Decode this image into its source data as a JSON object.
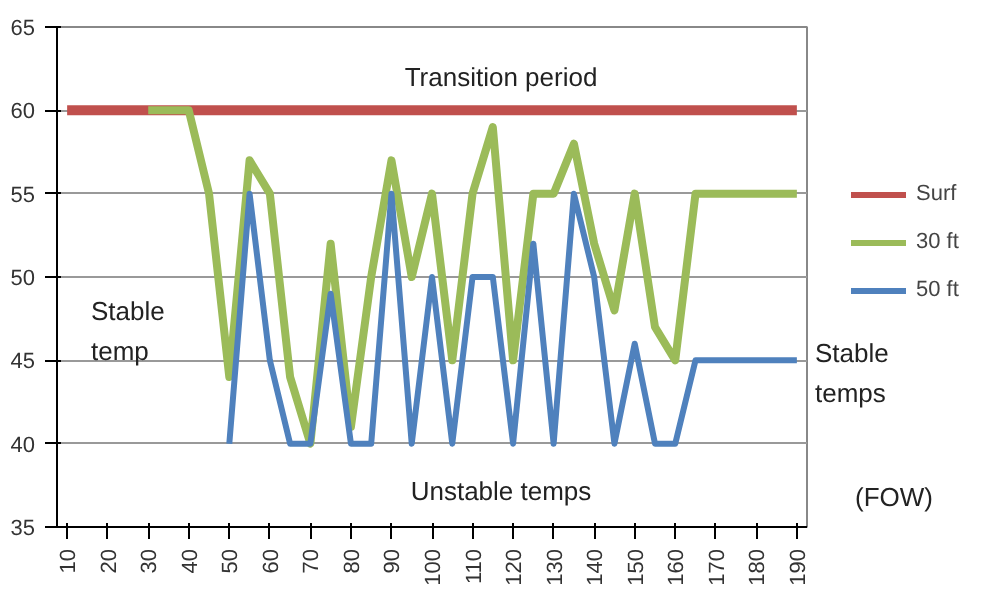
{
  "chart_data": {
    "type": "line",
    "x": [
      10,
      15,
      20,
      25,
      30,
      35,
      40,
      45,
      50,
      55,
      60,
      65,
      70,
      75,
      80,
      85,
      90,
      95,
      100,
      105,
      110,
      115,
      120,
      125,
      130,
      135,
      140,
      145,
      150,
      155,
      160,
      165,
      170,
      175,
      180,
      185,
      190
    ],
    "series": [
      {
        "name": "Surf",
        "color": "#c0504d",
        "values": [
          60,
          60,
          60,
          60,
          60,
          60,
          60,
          60,
          60,
          60,
          60,
          60,
          60,
          60,
          60,
          60,
          60,
          60,
          60,
          60,
          60,
          60,
          60,
          60,
          60,
          60,
          60,
          60,
          60,
          60,
          60,
          60,
          60,
          60,
          60,
          60,
          60
        ]
      },
      {
        "name": "30 ft",
        "color": "#9bbb59",
        "values": [
          null,
          null,
          null,
          null,
          60,
          60,
          60,
          55,
          44,
          57,
          55,
          44,
          40,
          52,
          41,
          50,
          57,
          50,
          55,
          45,
          55,
          59,
          45,
          55,
          55,
          58,
          52,
          48,
          55,
          47,
          45,
          55,
          55,
          55,
          55,
          55,
          55
        ]
      },
      {
        "name": "50 ft",
        "color": "#4f81bd",
        "values": [
          null,
          null,
          null,
          null,
          null,
          null,
          null,
          null,
          40,
          55,
          45,
          40,
          40,
          49,
          40,
          40,
          55,
          40,
          50,
          40,
          50,
          50,
          40,
          52,
          40,
          55,
          50,
          40,
          46,
          40,
          40,
          45,
          45,
          45,
          45,
          45,
          45
        ]
      }
    ],
    "xlim": [
      7.5,
      192.5
    ],
    "ylim": [
      35,
      65
    ],
    "xticks": [
      10,
      20,
      30,
      40,
      50,
      60,
      70,
      80,
      90,
      100,
      110,
      120,
      130,
      140,
      150,
      160,
      170,
      180,
      190
    ],
    "yticks": [
      35,
      40,
      45,
      50,
      55,
      60,
      65
    ],
    "grid": "y",
    "legend": "right",
    "marker": "none",
    "line_style": "solid",
    "annotations": [
      "Transition period",
      "Stable temp",
      "Unstable temps",
      "Stable temps",
      "(FOW)"
    ]
  }
}
